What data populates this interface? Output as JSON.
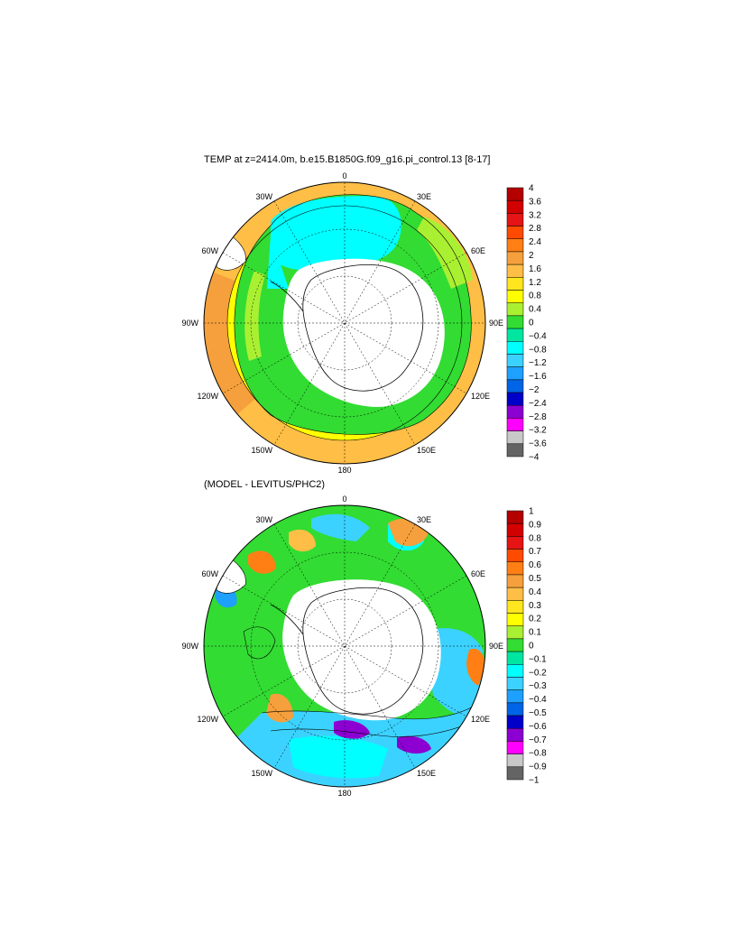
{
  "panels": [
    {
      "id": "temp",
      "title": "TEMP at z=2414.0m, b.e15.B1850G.f09_g16.pi_control.13 [8-17]",
      "lon_labels": [
        "0",
        "30E",
        "60E",
        "90E",
        "120E",
        "150E",
        "180",
        "150W",
        "120W",
        "90W",
        "60W",
        "30W"
      ],
      "colorbar": {
        "labels": [
          "4",
          "3.6",
          "3.2",
          "2.8",
          "2.4",
          "2",
          "1.6",
          "1.2",
          "0.8",
          "0.4",
          "0",
          "−0.4",
          "−0.8",
          "−1.2",
          "−1.6",
          "−2",
          "−2.4",
          "−2.8",
          "−3.2",
          "−3.6",
          "−4"
        ],
        "colors": [
          "#b40000",
          "#d20000",
          "#e61414",
          "#ff4b00",
          "#ff7f14",
          "#f5a03c",
          "#ffbe46",
          "#ffe61e",
          "#ffff00",
          "#aaf032",
          "#32dc32",
          "#00e6a0",
          "#00ffff",
          "#3cd2ff",
          "#1ea0ff",
          "#0064e6",
          "#0000c8",
          "#8c00d2",
          "#ff00ff",
          "#c8c8c8",
          "#646464"
        ]
      }
    },
    {
      "id": "diff",
      "title": "(MODEL - LEVITUS/PHC2)",
      "lon_labels": [
        "0",
        "30E",
        "60E",
        "90E",
        "120E",
        "150E",
        "180",
        "150W",
        "120W",
        "90W",
        "60W",
        "30W"
      ],
      "colorbar": {
        "labels": [
          "1",
          "0.9",
          "0.8",
          "0.7",
          "0.6",
          "0.5",
          "0.4",
          "0.3",
          "0.2",
          "0.1",
          "0",
          "−0.1",
          "−0.2",
          "−0.3",
          "−0.4",
          "−0.5",
          "−0.6",
          "−0.7",
          "−0.8",
          "−0.9",
          "−1"
        ],
        "colors": [
          "#b40000",
          "#d20000",
          "#e61414",
          "#ff4b00",
          "#ff7f14",
          "#f5a03c",
          "#ffbe46",
          "#ffe61e",
          "#ffff00",
          "#aaf032",
          "#32dc32",
          "#00e6a0",
          "#00ffff",
          "#3cd2ff",
          "#1ea0ff",
          "#0064e6",
          "#0000c8",
          "#8c00d2",
          "#ff00ff",
          "#c8c8c8",
          "#646464"
        ]
      }
    }
  ],
  "colors": {
    "land": "#ffffff",
    "outline": "#000000"
  }
}
